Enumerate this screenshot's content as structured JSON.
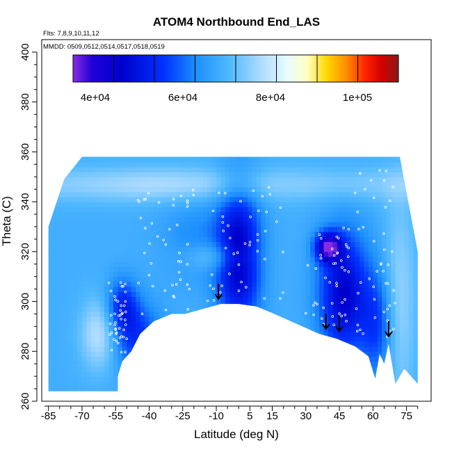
{
  "chart_data": {
    "type": "heatmap",
    "title": "ATOM4 Northbound End_LAS",
    "subtitle_flights": "Flts: 7,8,9,10,11,12",
    "subtitle_dates": "MMDD: 0509,0512,0514,0517,0518,0519",
    "xlabel": "Latitude (deg N)",
    "ylabel": "Theta (C)",
    "xlim": [
      -88,
      86
    ],
    "ylim": [
      260,
      405
    ],
    "x_ticks": [
      -85,
      -70,
      -55,
      -40,
      -25,
      -10,
      5,
      15,
      30,
      45,
      60,
      75
    ],
    "x_tick_labels": [
      "-85",
      "-70",
      "-55",
      "-40",
      "-25",
      "-10",
      "5",
      "15",
      "30",
      "45",
      "60",
      "75"
    ],
    "y_ticks": [
      260,
      280,
      300,
      320,
      340,
      360,
      380,
      400
    ],
    "y_tick_labels": [
      "260",
      "280",
      "300",
      "320",
      "340",
      "360",
      "380",
      "400"
    ],
    "colorbar": {
      "range": [
        30000,
        110000
      ],
      "ticks": [
        40000,
        60000,
        80000,
        100000
      ],
      "tick_labels": [
        "4e+04",
        "6e+04",
        "8e+04",
        "1e+05"
      ],
      "colors": [
        "#8a2be2",
        "#0000cd",
        "#0000ff",
        "#1e90ff",
        "#00bfff",
        "#87cefa",
        "#e0ffff",
        "#ffffe0",
        "#ffd700",
        "#ff8c00",
        "#ff0000",
        "#cd0000",
        "#8b1a1a"
      ]
    },
    "lower_boundary": [
      {
        "lat": -54,
        "theta": 270
      },
      {
        "lat": -52,
        "theta": 276
      },
      {
        "lat": -48,
        "theta": 280
      },
      {
        "lat": -44,
        "theta": 287
      },
      {
        "lat": -38,
        "theta": 292
      },
      {
        "lat": -30,
        "theta": 295
      },
      {
        "lat": -24,
        "theta": 295
      },
      {
        "lat": -16,
        "theta": 297
      },
      {
        "lat": -8,
        "theta": 299
      },
      {
        "lat": 0,
        "theta": 299
      },
      {
        "lat": 8,
        "theta": 298
      },
      {
        "lat": 16,
        "theta": 295
      },
      {
        "lat": 26,
        "theta": 291
      },
      {
        "lat": 36,
        "theta": 287
      },
      {
        "lat": 44,
        "theta": 285
      },
      {
        "lat": 52,
        "theta": 282
      },
      {
        "lat": 58,
        "theta": 278
      },
      {
        "lat": 61,
        "theta": 269
      },
      {
        "lat": 63,
        "theta": 279
      },
      {
        "lat": 65,
        "theta": 275
      },
      {
        "lat": 67,
        "theta": 283
      },
      {
        "lat": 70,
        "theta": 267
      },
      {
        "lat": 74,
        "theta": 273
      }
    ],
    "upper_boundary_theta": 358,
    "profile_arrows": [
      {
        "lat": -9,
        "theta": 301
      },
      {
        "lat": 39,
        "theta": 289
      },
      {
        "lat": 45,
        "theta": 288
      },
      {
        "lat": 67,
        "theta": 286
      }
    ]
  }
}
